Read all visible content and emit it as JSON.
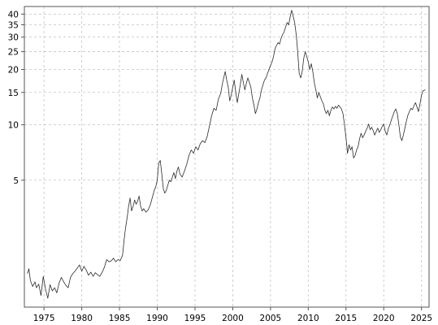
{
  "chart_data": {
    "type": "line",
    "title": "",
    "xlabel": "",
    "ylabel": "",
    "y_scale": "log",
    "xlim": [
      1972.4,
      2026.0
    ],
    "ylim": [
      1.02,
      44
    ],
    "grid": true,
    "legend": "none",
    "x_ticks": [
      1975,
      1980,
      1985,
      1990,
      1995,
      2000,
      2005,
      2010,
      2015,
      2020,
      2025
    ],
    "x_tick_labels": [
      "1975",
      "1980",
      "1985",
      "1990",
      "1995",
      "2000",
      "2005",
      "2010",
      "2015",
      "2020",
      "2025"
    ],
    "y_ticks": [
      5,
      10,
      15,
      20,
      25,
      30,
      35,
      40
    ],
    "y_tick_labels": [
      "5",
      "10",
      "15",
      "20",
      "25",
      "30",
      "35",
      "40"
    ],
    "colors": {
      "line": "#2b2b2b",
      "grid": "#c4c4c4",
      "frame": "#555555",
      "background": "#ffffff"
    },
    "series": [
      {
        "values": [
          [
            1972.8,
            1.55
          ],
          [
            1973.0,
            1.65
          ],
          [
            1973.2,
            1.42
          ],
          [
            1973.5,
            1.32
          ],
          [
            1973.8,
            1.4
          ],
          [
            1974.0,
            1.3
          ],
          [
            1974.3,
            1.36
          ],
          [
            1974.6,
            1.18
          ],
          [
            1974.9,
            1.5
          ],
          [
            1975.2,
            1.28
          ],
          [
            1975.5,
            1.14
          ],
          [
            1975.8,
            1.35
          ],
          [
            1976.1,
            1.25
          ],
          [
            1976.4,
            1.3
          ],
          [
            1976.7,
            1.22
          ],
          [
            1977.0,
            1.38
          ],
          [
            1977.3,
            1.48
          ],
          [
            1977.6,
            1.4
          ],
          [
            1977.9,
            1.34
          ],
          [
            1978.2,
            1.3
          ],
          [
            1978.5,
            1.48
          ],
          [
            1978.8,
            1.55
          ],
          [
            1979.1,
            1.6
          ],
          [
            1979.4,
            1.66
          ],
          [
            1979.7,
            1.73
          ],
          [
            1980.0,
            1.6
          ],
          [
            1980.3,
            1.7
          ],
          [
            1980.6,
            1.62
          ],
          [
            1980.9,
            1.52
          ],
          [
            1981.2,
            1.58
          ],
          [
            1981.5,
            1.5
          ],
          [
            1981.8,
            1.57
          ],
          [
            1982.1,
            1.53
          ],
          [
            1982.4,
            1.5
          ],
          [
            1982.7,
            1.58
          ],
          [
            1983.0,
            1.68
          ],
          [
            1983.3,
            1.85
          ],
          [
            1983.6,
            1.8
          ],
          [
            1983.9,
            1.82
          ],
          [
            1984.2,
            1.88
          ],
          [
            1984.5,
            1.8
          ],
          [
            1984.8,
            1.85
          ],
          [
            1985.1,
            1.83
          ],
          [
            1985.4,
            1.95
          ],
          [
            1985.6,
            2.35
          ],
          [
            1985.8,
            2.75
          ],
          [
            1986.0,
            3.1
          ],
          [
            1986.2,
            3.6
          ],
          [
            1986.4,
            4.0
          ],
          [
            1986.6,
            3.4
          ],
          [
            1986.8,
            3.6
          ],
          [
            1987.0,
            3.9
          ],
          [
            1987.2,
            3.7
          ],
          [
            1987.4,
            3.85
          ],
          [
            1987.6,
            4.1
          ],
          [
            1987.8,
            3.6
          ],
          [
            1988.0,
            3.4
          ],
          [
            1988.2,
            3.5
          ],
          [
            1988.5,
            3.35
          ],
          [
            1988.8,
            3.45
          ],
          [
            1989.1,
            3.7
          ],
          [
            1989.4,
            4.1
          ],
          [
            1989.6,
            4.4
          ],
          [
            1989.8,
            4.6
          ],
          [
            1990.0,
            5.0
          ],
          [
            1990.2,
            6.2
          ],
          [
            1990.4,
            6.4
          ],
          [
            1990.6,
            5.4
          ],
          [
            1990.8,
            4.5
          ],
          [
            1991.0,
            4.25
          ],
          [
            1991.2,
            4.4
          ],
          [
            1991.4,
            4.7
          ],
          [
            1991.6,
            5.0
          ],
          [
            1991.8,
            4.9
          ],
          [
            1992.0,
            5.2
          ],
          [
            1992.2,
            5.5
          ],
          [
            1992.4,
            5.1
          ],
          [
            1992.6,
            5.6
          ],
          [
            1992.8,
            5.9
          ],
          [
            1993.0,
            5.4
          ],
          [
            1993.3,
            5.2
          ],
          [
            1993.6,
            5.6
          ],
          [
            1993.9,
            6.1
          ],
          [
            1994.2,
            6.8
          ],
          [
            1994.5,
            7.3
          ],
          [
            1994.8,
            7.0
          ],
          [
            1995.1,
            7.6
          ],
          [
            1995.4,
            7.3
          ],
          [
            1995.7,
            7.9
          ],
          [
            1996.0,
            8.2
          ],
          [
            1996.3,
            8.0
          ],
          [
            1996.6,
            8.6
          ],
          [
            1996.9,
            9.8
          ],
          [
            1997.2,
            11.2
          ],
          [
            1997.5,
            12.3
          ],
          [
            1997.8,
            12.0
          ],
          [
            1998.1,
            13.8
          ],
          [
            1998.4,
            14.8
          ],
          [
            1998.6,
            16.5
          ],
          [
            1998.8,
            18.0
          ],
          [
            1999.0,
            19.5
          ],
          [
            1999.2,
            17.5
          ],
          [
            1999.4,
            16.0
          ],
          [
            1999.6,
            13.5
          ],
          [
            1999.8,
            14.5
          ],
          [
            2000.0,
            16.0
          ],
          [
            2000.2,
            17.5
          ],
          [
            2000.4,
            15.0
          ],
          [
            2000.6,
            13.2
          ],
          [
            2000.8,
            14.8
          ],
          [
            2001.0,
            16.5
          ],
          [
            2001.2,
            18.8
          ],
          [
            2001.4,
            17.0
          ],
          [
            2001.6,
            15.5
          ],
          [
            2001.8,
            16.8
          ],
          [
            2002.0,
            18.0
          ],
          [
            2002.2,
            17.0
          ],
          [
            2002.4,
            16.0
          ],
          [
            2002.6,
            14.0
          ],
          [
            2002.8,
            12.8
          ],
          [
            2003.0,
            11.5
          ],
          [
            2003.2,
            12.2
          ],
          [
            2003.4,
            13.2
          ],
          [
            2003.6,
            14.0
          ],
          [
            2003.8,
            15.5
          ],
          [
            2004.0,
            16.5
          ],
          [
            2004.2,
            17.5
          ],
          [
            2004.4,
            18.0
          ],
          [
            2004.6,
            19.0
          ],
          [
            2004.8,
            20.0
          ],
          [
            2005.0,
            21.0
          ],
          [
            2005.2,
            22.0
          ],
          [
            2005.4,
            23.5
          ],
          [
            2005.6,
            26.0
          ],
          [
            2005.8,
            27.0
          ],
          [
            2006.0,
            28.0
          ],
          [
            2006.2,
            27.5
          ],
          [
            2006.4,
            29.5
          ],
          [
            2006.6,
            31.0
          ],
          [
            2006.8,
            32.0
          ],
          [
            2007.0,
            34.0
          ],
          [
            2007.2,
            36.0
          ],
          [
            2007.4,
            35.0
          ],
          [
            2007.6,
            38.5
          ],
          [
            2007.8,
            42.0
          ],
          [
            2008.0,
            39.0
          ],
          [
            2008.2,
            36.0
          ],
          [
            2008.4,
            31.0
          ],
          [
            2008.6,
            25.0
          ],
          [
            2008.8,
            19.0
          ],
          [
            2009.0,
            18.0
          ],
          [
            2009.2,
            19.5
          ],
          [
            2009.4,
            23.0
          ],
          [
            2009.6,
            25.0
          ],
          [
            2009.8,
            23.5
          ],
          [
            2010.0,
            22.0
          ],
          [
            2010.2,
            20.0
          ],
          [
            2010.4,
            21.5
          ],
          [
            2010.6,
            19.5
          ],
          [
            2010.8,
            17.0
          ],
          [
            2011.0,
            15.5
          ],
          [
            2011.2,
            14.0
          ],
          [
            2011.4,
            15.0
          ],
          [
            2011.6,
            14.2
          ],
          [
            2011.8,
            13.5
          ],
          [
            2012.0,
            13.0
          ],
          [
            2012.2,
            12.0
          ],
          [
            2012.4,
            11.5
          ],
          [
            2012.6,
            12.0
          ],
          [
            2012.8,
            11.2
          ],
          [
            2013.0,
            12.0
          ],
          [
            2013.2,
            12.5
          ],
          [
            2013.4,
            12.2
          ],
          [
            2013.6,
            12.6
          ],
          [
            2013.8,
            12.3
          ],
          [
            2014.0,
            12.8
          ],
          [
            2014.2,
            12.5
          ],
          [
            2014.4,
            12.2
          ],
          [
            2014.6,
            11.5
          ],
          [
            2014.8,
            10.0
          ],
          [
            2015.0,
            8.5
          ],
          [
            2015.2,
            7.0
          ],
          [
            2015.4,
            7.8
          ],
          [
            2015.6,
            7.3
          ],
          [
            2015.8,
            7.6
          ],
          [
            2016.0,
            6.6
          ],
          [
            2016.2,
            6.8
          ],
          [
            2016.4,
            7.3
          ],
          [
            2016.6,
            7.6
          ],
          [
            2016.8,
            8.4
          ],
          [
            2017.0,
            9.0
          ],
          [
            2017.2,
            8.5
          ],
          [
            2017.4,
            8.8
          ],
          [
            2017.6,
            9.2
          ],
          [
            2017.8,
            9.6
          ],
          [
            2018.0,
            10.1
          ],
          [
            2018.2,
            9.4
          ],
          [
            2018.4,
            9.7
          ],
          [
            2018.6,
            9.3
          ],
          [
            2018.8,
            8.8
          ],
          [
            2019.0,
            9.2
          ],
          [
            2019.2,
            9.6
          ],
          [
            2019.4,
            9.1
          ],
          [
            2019.6,
            9.4
          ],
          [
            2019.8,
            9.8
          ],
          [
            2020.0,
            10.1
          ],
          [
            2020.2,
            9.2
          ],
          [
            2020.4,
            8.8
          ],
          [
            2020.6,
            9.5
          ],
          [
            2020.8,
            10.0
          ],
          [
            2021.0,
            10.6
          ],
          [
            2021.2,
            11.2
          ],
          [
            2021.4,
            11.8
          ],
          [
            2021.6,
            12.2
          ],
          [
            2021.8,
            11.5
          ],
          [
            2022.0,
            10.0
          ],
          [
            2022.2,
            8.6
          ],
          [
            2022.4,
            8.2
          ],
          [
            2022.6,
            8.8
          ],
          [
            2022.8,
            9.6
          ],
          [
            2023.0,
            10.5
          ],
          [
            2023.2,
            11.3
          ],
          [
            2023.4,
            11.8
          ],
          [
            2023.6,
            12.3
          ],
          [
            2023.8,
            12.1
          ],
          [
            2024.0,
            12.7
          ],
          [
            2024.2,
            13.2
          ],
          [
            2024.4,
            12.5
          ],
          [
            2024.6,
            11.8
          ],
          [
            2024.8,
            13.0
          ],
          [
            2025.0,
            14.5
          ],
          [
            2025.2,
            15.3
          ],
          [
            2025.5,
            15.5
          ]
        ]
      }
    ]
  }
}
